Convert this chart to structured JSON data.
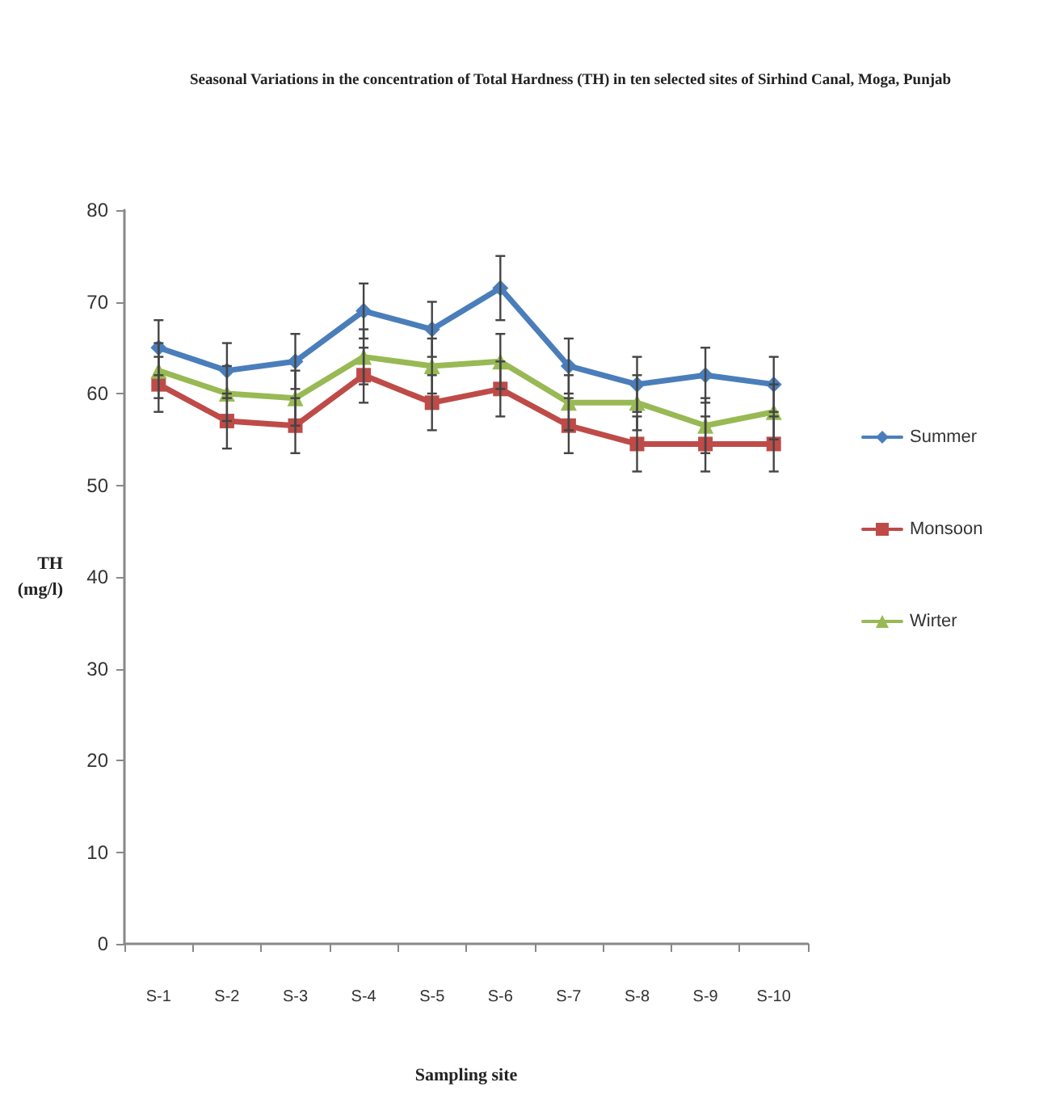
{
  "chart_data": {
    "type": "line",
    "title": "Seasonal Variations in the concentration of Total Hardness (TH) in ten selected sites of Sirhind Canal, Moga, Punjab",
    "xlabel": "Sampling site",
    "ylabel": "TH\n(mg/l)",
    "categories": [
      "S-1",
      "S-2",
      "S-3",
      "S-4",
      "S-5",
      "S-6",
      "S-7",
      "S-8",
      "S-9",
      "S-10"
    ],
    "series": [
      {
        "name": "Summer",
        "color": "#4a7ebb",
        "marker": "diamond",
        "values": [
          65,
          62.5,
          63.5,
          69,
          67,
          71.5,
          63,
          61,
          62,
          61
        ],
        "errors": [
          3,
          3,
          3,
          3,
          3,
          3.5,
          3,
          3,
          3,
          3
        ]
      },
      {
        "name": "Monsoon",
        "color": "#be4b48",
        "marker": "square",
        "values": [
          61,
          57,
          56.5,
          62,
          59,
          60.5,
          56.5,
          54.5,
          54.5,
          54.5
        ],
        "errors": [
          3,
          3,
          3,
          3,
          3,
          3,
          3,
          3,
          3,
          3
        ]
      },
      {
        "name": "Wirter",
        "color": "#98b954",
        "marker": "triangle",
        "values": [
          62.5,
          60,
          59.5,
          64,
          63,
          63.5,
          59,
          59,
          56.5,
          58
        ],
        "errors": [
          3,
          3,
          3,
          3,
          3,
          3,
          3,
          3,
          3,
          3
        ]
      }
    ],
    "ylim": [
      0,
      80
    ],
    "yticks": [
      0,
      10,
      20,
      30,
      40,
      50,
      60,
      70,
      80
    ],
    "grid": false,
    "legend": "right"
  }
}
